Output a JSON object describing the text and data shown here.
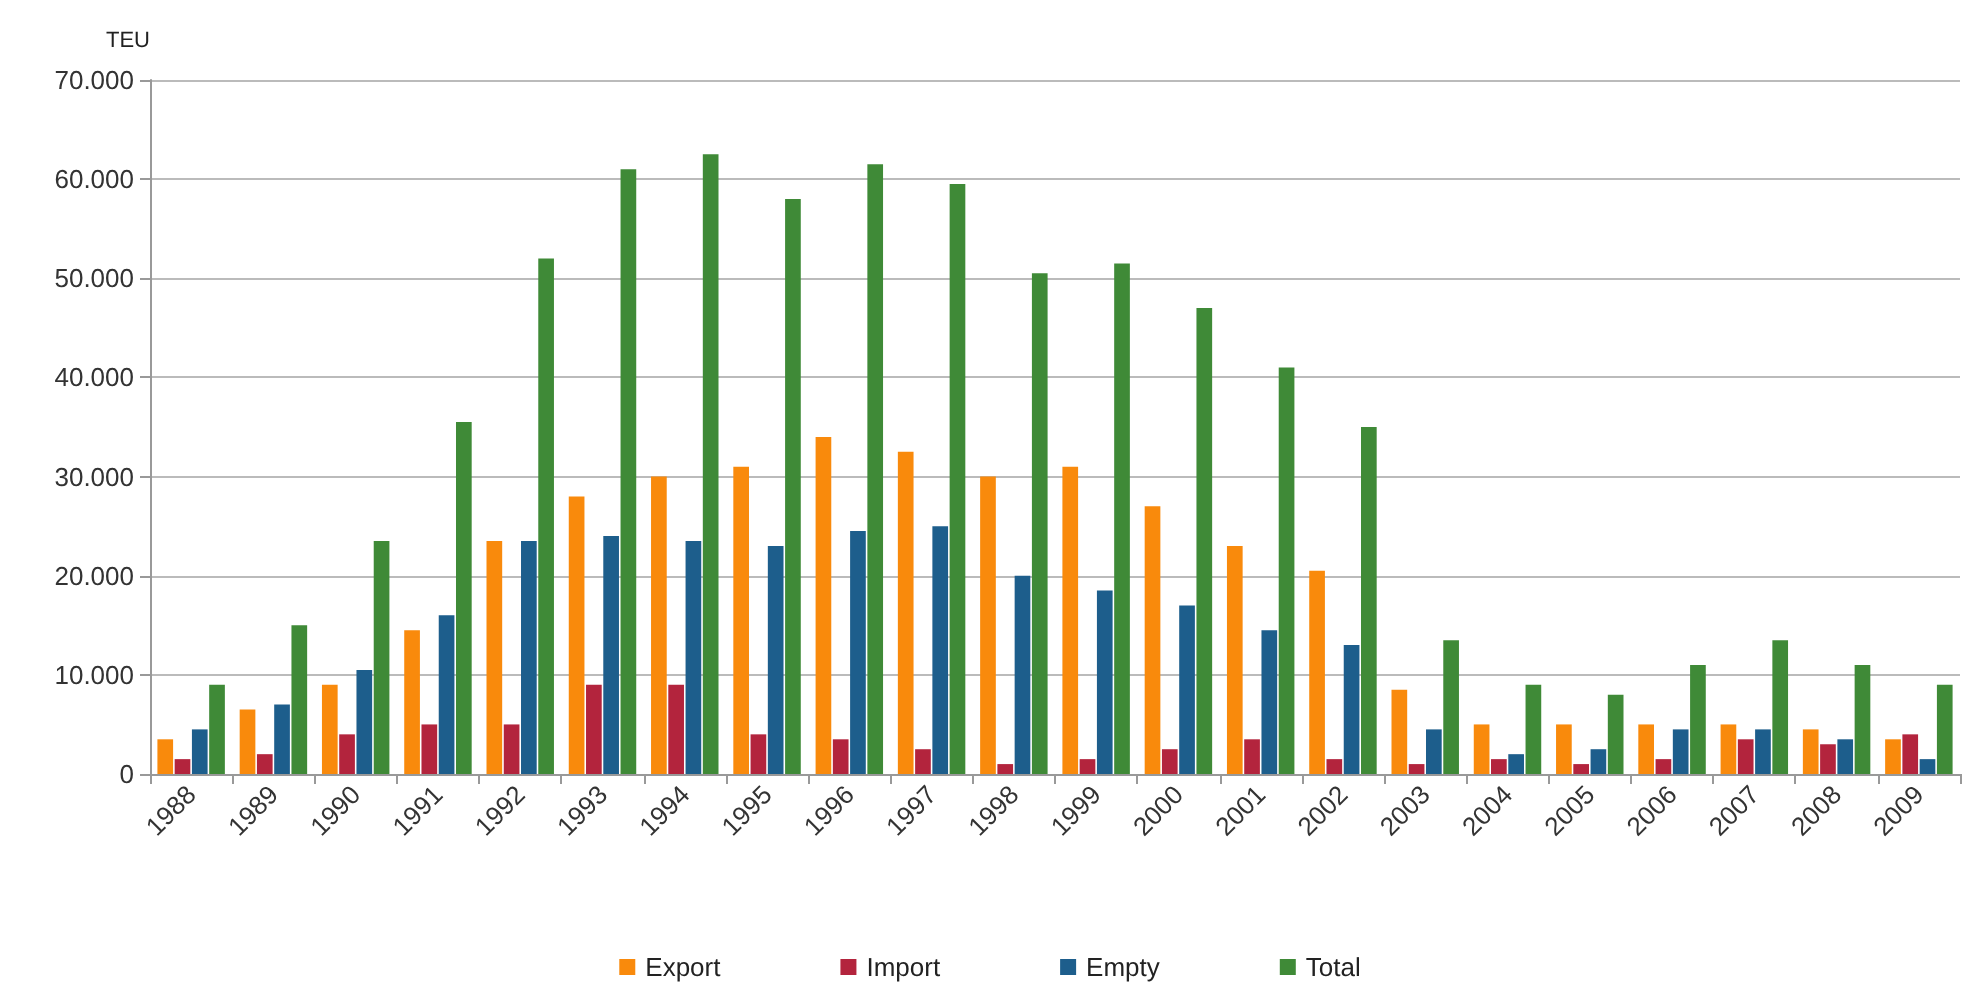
{
  "chart_data": {
    "type": "bar",
    "ylabel": "TEU",
    "categories": [
      "1988",
      "1989",
      "1990",
      "1991",
      "1992",
      "1993",
      "1994",
      "1995",
      "1996",
      "1997",
      "1998",
      "1999",
      "2000",
      "2001",
      "2002",
      "2003",
      "2004",
      "2005",
      "2006",
      "2007",
      "2008",
      "2009"
    ],
    "series": [
      {
        "name": "Export",
        "color": "#f98a0c",
        "values": [
          3500,
          6500,
          9000,
          14500,
          23500,
          28000,
          30000,
          31000,
          34000,
          32500,
          30000,
          31000,
          27000,
          23000,
          20500,
          8500,
          5000,
          5000,
          5000,
          5000,
          4500,
          3500
        ]
      },
      {
        "name": "Import",
        "color": "#b3243d",
        "values": [
          1500,
          2000,
          4000,
          5000,
          5000,
          9000,
          9000,
          4000,
          3500,
          2500,
          1000,
          1500,
          2500,
          3500,
          1500,
          1000,
          1500,
          1000,
          1500,
          3500,
          3000,
          4000
        ]
      },
      {
        "name": "Empty",
        "color": "#1d5e8c",
        "values": [
          4500,
          7000,
          10500,
          16000,
          23500,
          24000,
          23500,
          23000,
          24500,
          25000,
          20000,
          18500,
          17000,
          14500,
          13000,
          4500,
          2000,
          2500,
          4500,
          4500,
          3500,
          1500
        ]
      },
      {
        "name": "Total",
        "color": "#3f8a37",
        "values": [
          9000,
          15000,
          23500,
          35500,
          52000,
          61000,
          62500,
          58000,
          61500,
          59500,
          50500,
          51500,
          47000,
          41000,
          35000,
          13500,
          9000,
          8000,
          11000,
          13500,
          11000,
          9000
        ]
      }
    ],
    "ylim": [
      0,
      70000
    ],
    "yticks": [
      {
        "value": 0,
        "label": "0"
      },
      {
        "value": 10000,
        "label": "10.000"
      },
      {
        "value": 20000,
        "label": "20.000"
      },
      {
        "value": 30000,
        "label": "30.000"
      },
      {
        "value": 40000,
        "label": "40.000"
      },
      {
        "value": 50000,
        "label": "50.000"
      },
      {
        "value": 60000,
        "label": "60.000"
      },
      {
        "value": 70000,
        "label": "70.000"
      }
    ],
    "grid": "y",
    "legend": "bottom"
  }
}
